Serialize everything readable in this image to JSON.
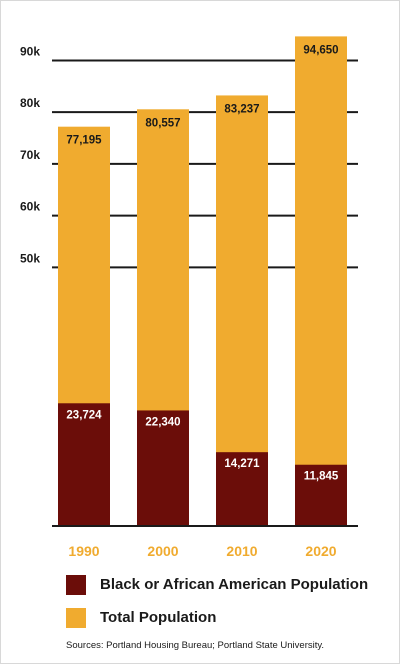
{
  "chart_data": {
    "type": "bar",
    "categories": [
      "1990",
      "2000",
      "2010",
      "2020"
    ],
    "series": [
      {
        "name": "Total Population",
        "values": [
          77195,
          80557,
          83237,
          94650
        ],
        "labels": [
          "77,195",
          "80,557",
          "83,237",
          "94,650"
        ]
      },
      {
        "name": "Black or African American Population",
        "values": [
          23724,
          22340,
          14271,
          11845
        ],
        "labels": [
          "23,724",
          "22,340",
          "14,271",
          "11,845"
        ]
      }
    ],
    "yticks": [
      {
        "value": 50000,
        "label": "50k"
      },
      {
        "value": 60000,
        "label": "60k"
      },
      {
        "value": 70000,
        "label": "70k"
      },
      {
        "value": 80000,
        "label": "80k"
      },
      {
        "value": 90000,
        "label": "90k"
      }
    ],
    "ylim": [
      0,
      95500
    ],
    "grid": true,
    "legend_position": "bottom",
    "colors": {
      "total": "#f0ab2f",
      "black": "#6b0d09",
      "year_label": "#f0ab2f",
      "grid": "#1a1a1a"
    }
  },
  "legend": [
    {
      "label": "Black or African American Population",
      "color": "#6b0d09"
    },
    {
      "label": "Total Population",
      "color": "#f0ab2f"
    }
  ],
  "source": "Sources: Portland Housing Bureau; Portland State University."
}
